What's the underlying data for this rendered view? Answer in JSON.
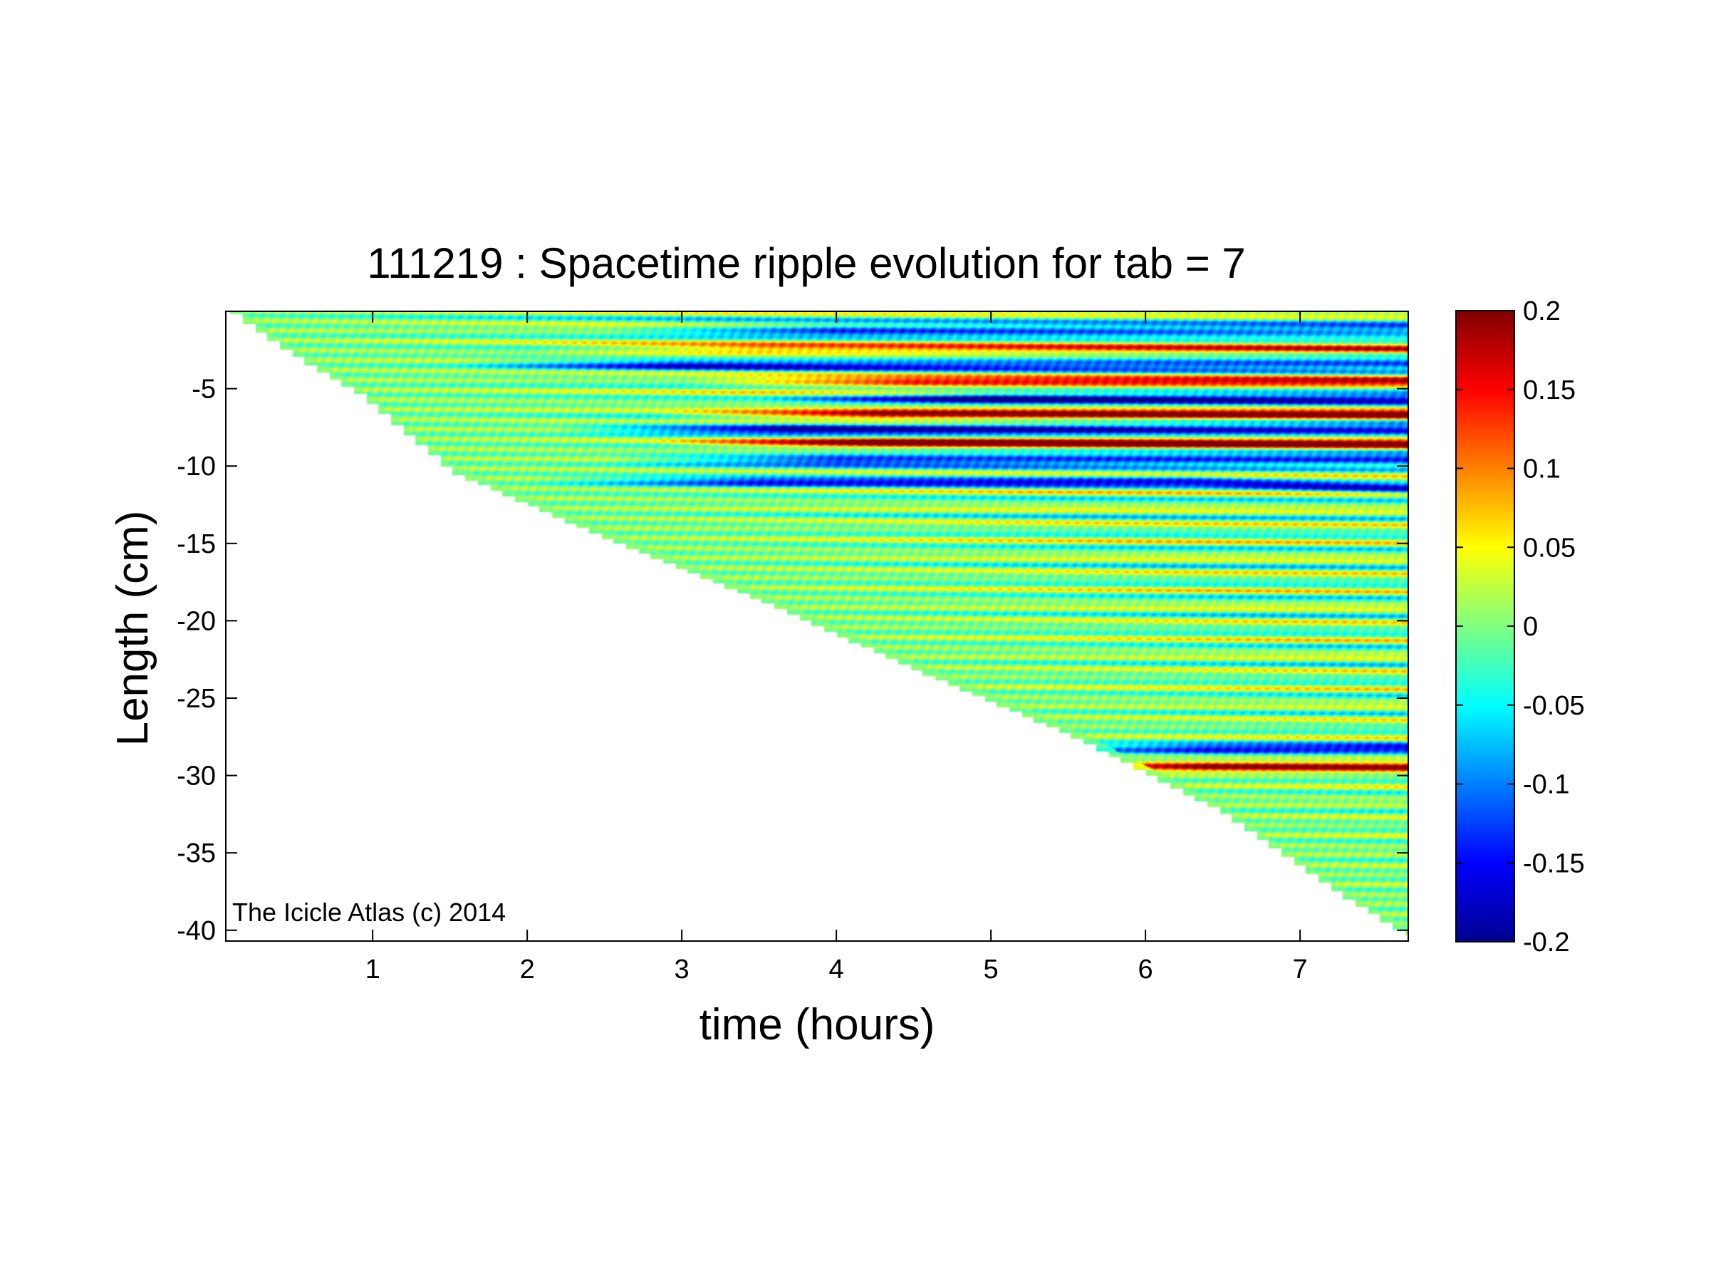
{
  "chart_data": {
    "type": "heatmap",
    "title": "111219 : Spacetime ripple evolution for tab = 7",
    "xlabel": "time (hours)",
    "ylabel": "Length (cm)",
    "xlim": [
      0.05,
      7.7
    ],
    "ylim": [
      -40.7,
      0
    ],
    "x_ticks": [
      1,
      2,
      3,
      4,
      5,
      6,
      7
    ],
    "x_tick_labels": [
      "1",
      "2",
      "3",
      "4",
      "5",
      "6",
      "7"
    ],
    "y_ticks": [
      -5,
      -10,
      -15,
      -20,
      -25,
      -30,
      -35,
      -40
    ],
    "y_tick_labels": [
      "-5",
      "-10",
      "-15",
      "-20",
      "-25",
      "-30",
      "-35",
      "-40"
    ],
    "colormap": "jet",
    "color_limits": [
      -0.2,
      0.2
    ],
    "colorbar_ticks": [
      0.2,
      0.15,
      0.1,
      0.05,
      0,
      -0.05,
      -0.1,
      -0.15,
      -0.2
    ],
    "colorbar_tick_labels": [
      "0.2",
      "0.15",
      "0.1",
      "0.05",
      "0",
      "-0.05",
      "-0.1",
      "-0.15",
      "-0.2"
    ],
    "data_boundary": {
      "description_of_domain": "data exists only above the icicle length line",
      "time": [
        0.05,
        0.4,
        0.9,
        1.5,
        2.5,
        3.5,
        4.5,
        5.5,
        6.5,
        7.2,
        7.65
      ],
      "length": [
        0,
        -2.5,
        -5.5,
        -10.5,
        -14.8,
        -18.8,
        -23.3,
        -27.5,
        -32.6,
        -37.5,
        -40.3
      ]
    },
    "features": [
      {
        "kind": "band",
        "length": -1.2,
        "t_start": 3.5,
        "amplitude": -0.15
      },
      {
        "kind": "band",
        "length": -2.5,
        "t_start": 3.0,
        "amplitude": 0.12
      },
      {
        "kind": "band",
        "length": -3.4,
        "t_start": 2.5,
        "amplitude": -0.16
      },
      {
        "kind": "band",
        "length": -4.6,
        "t_start": 4.0,
        "amplitude": 0.16
      },
      {
        "kind": "band",
        "length": -5.6,
        "t_start": 4.5,
        "amplitude": -0.2
      },
      {
        "kind": "band",
        "length": -6.7,
        "t_start": 3.8,
        "amplitude": 0.2
      },
      {
        "kind": "band",
        "length": -7.6,
        "t_start": 3.2,
        "amplitude": -0.2
      },
      {
        "kind": "band",
        "length": -8.5,
        "t_start": 3.8,
        "amplitude": 0.2
      },
      {
        "kind": "band",
        "length": -9.6,
        "t_start": 3.5,
        "amplitude": -0.17
      },
      {
        "kind": "band",
        "length": -11.0,
        "t_start": 3.0,
        "amplitude": -0.14
      },
      {
        "kind": "band",
        "length": -28.3,
        "t_start": 5.9,
        "amplitude": -0.16
      },
      {
        "kind": "band",
        "length": -29.4,
        "t_start": 5.9,
        "amplitude": 0.18
      }
    ],
    "annotation": "The Icicle Atlas (c) 2014"
  }
}
